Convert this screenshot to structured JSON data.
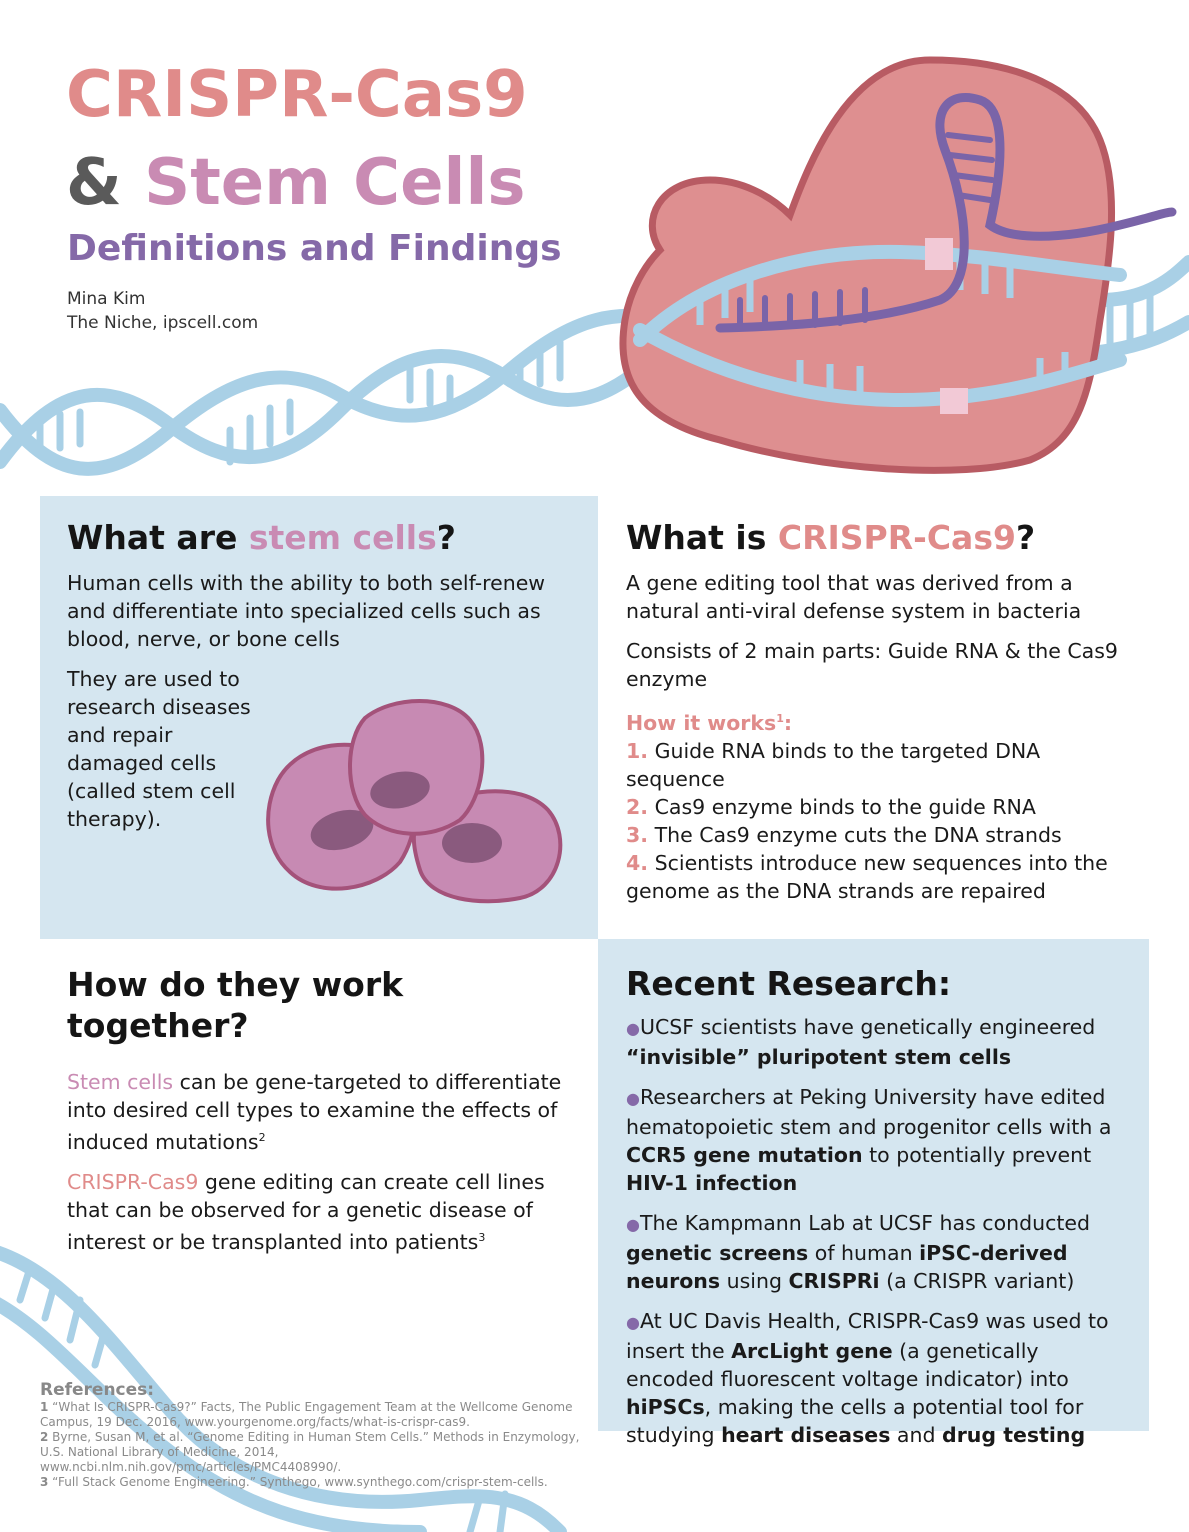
{
  "header": {
    "title_line1": "CRISPR-Cas9",
    "title_amp": "&",
    "title_line2": "Stem Cells",
    "subtitle": "Definitions and Findings",
    "author": "Mina Kim",
    "affiliation": "The Niche, ipscell.com"
  },
  "stem_cells": {
    "heading_pre": "What are ",
    "heading_hl": "stem cells",
    "heading_post": "?",
    "definition": "Human cells with the ability to both self-renew and differentiate into specialized cells such as blood, nerve, or bone cells",
    "usage": "They are used to research diseases and repair damaged cells (called stem cell therapy)."
  },
  "crispr": {
    "heading_pre": "What is ",
    "heading_hl": "CRISPR-Cas9",
    "heading_post": "?",
    "definition": "A gene editing tool that was derived from a natural anti-viral defense system in bacteria",
    "parts": "Consists of 2 main parts: Guide RNA & the Cas9 enzyme",
    "how_label": "How it works",
    "how_sup": "1",
    "how_colon": ":",
    "steps": [
      {
        "num": "1.",
        "text": "Guide RNA binds to the targeted DNA sequence"
      },
      {
        "num": "2.",
        "text": "Cas9 enzyme binds to the guide RNA"
      },
      {
        "num": "3.",
        "text": "The Cas9 enzyme cuts the DNA strands"
      },
      {
        "num": "4.",
        "text": "Scientists introduce new sequences into the genome as the DNA strands are repaired"
      }
    ]
  },
  "together": {
    "heading_line1": "How do they work",
    "heading_line2": "together?",
    "p1_hl": "Stem cells",
    "p1_text": " can be gene-targeted to differentiate into desired cell types to examine the effects of induced mutations",
    "p1_sup": "2",
    "p2_hl": "CRISPR-Cas9",
    "p2_text": " gene editing can create cell lines that can be observed for a genetic disease of interest or be transplanted into patients",
    "p2_sup": "3"
  },
  "research": {
    "heading": "Recent Research:",
    "bullet": "●",
    "items": [
      {
        "t1": "UCSF scientists have genetically engineered ",
        "b1": "“invisible” pluripotent stem cells"
      },
      {
        "t1": "Researchers at Peking University have edited hematopoietic stem and progenitor cells with a ",
        "b1": "CCR5 gene mutation",
        "t2": " to potentially prevent ",
        "b2": "HIV-1 infection"
      },
      {
        "t1": "The Kampmann Lab at UCSF has conducted ",
        "b1": "genetic screens",
        "t2": " of human ",
        "b2": "iPSC-derived neurons",
        "t3": " using ",
        "b3": "CRISPRi",
        "t4": " (a CRISPR variant)"
      },
      {
        "t1": "At UC Davis Health, CRISPR-Cas9 was used to insert the ",
        "b1": "ArcLight gene",
        "t2": " (a genetically encoded fluorescent voltage indicator) into ",
        "b2": "hiPSCs",
        "t3": ", making the cells a potential tool for studying ",
        "b3": "heart diseases",
        "t4": " and ",
        "b4": "drug testing"
      }
    ]
  },
  "references": {
    "heading": "References:",
    "items": [
      {
        "num": "1",
        "text": " “What Is CRISPR-Cas9?” Facts, The Public Engagement Team at the Wellcome Genome Campus, 19 Dec. 2016, www.yourgenome.org/facts/what-is-crispr-cas9."
      },
      {
        "num": "2",
        "text": " Byrne, Susan M, et al. “Genome Editing in Human Stem Cells.” Methods in Enzymology, U.S. National Library of Medicine, 2014, www.ncbi.nlm.nih.gov/pmc/articles/PMC4408990/."
      },
      {
        "num": "3",
        "text": " “Full Stack Genome Engineering.” Synthego, www.synthego.com/crispr-stem-cells."
      }
    ]
  },
  "colors": {
    "pink": "#e08b8a",
    "mauve": "#c98bb3",
    "purple": "#8569a8",
    "panel_blue": "#d5e6f0",
    "dna_blue": "#a9d0e6"
  }
}
